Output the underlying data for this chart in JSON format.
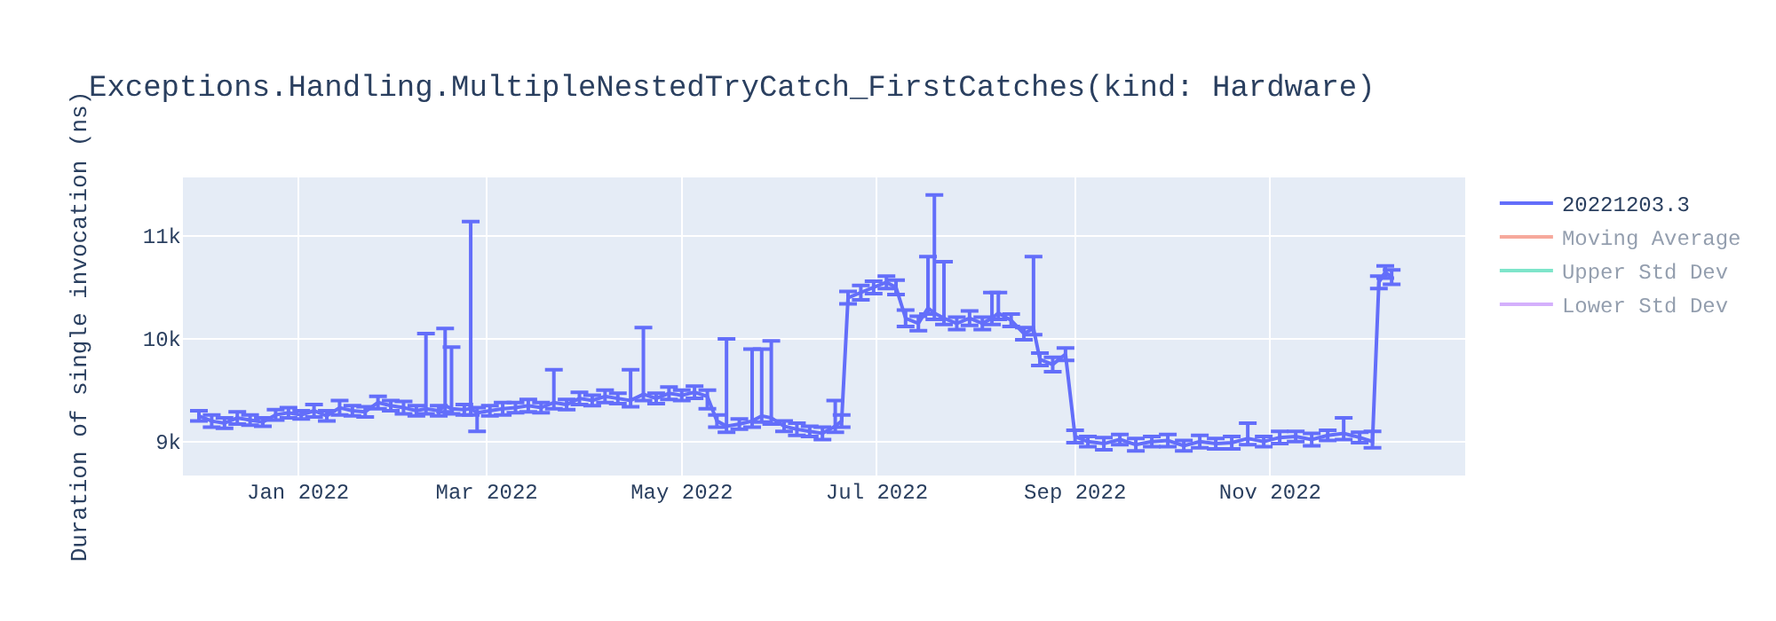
{
  "chart_data": {
    "type": "line",
    "title": "Exceptions.Handling.MultipleNestedTryCatch_FirstCatches(kind: Hardware)",
    "ylabel": "Duration of single invocation (ns)",
    "x": [
      "2021-12-01",
      "2021-12-05",
      "2021-12-09",
      "2021-12-13",
      "2021-12-17",
      "2021-12-21",
      "2021-12-25",
      "2021-12-29",
      "2022-01-02",
      "2022-01-06",
      "2022-01-10",
      "2022-01-14",
      "2022-01-18",
      "2022-01-22",
      "2022-01-26",
      "2022-01-30",
      "2022-02-03",
      "2022-02-07",
      "2022-02-10",
      "2022-02-14",
      "2022-02-16",
      "2022-02-18",
      "2022-02-22",
      "2022-02-24",
      "2022-02-26",
      "2022-03-02",
      "2022-03-06",
      "2022-03-10",
      "2022-03-14",
      "2022-03-18",
      "2022-03-22",
      "2022-03-26",
      "2022-03-30",
      "2022-04-03",
      "2022-04-07",
      "2022-04-11",
      "2022-04-15",
      "2022-04-19",
      "2022-04-23",
      "2022-04-27",
      "2022-05-01",
      "2022-05-05",
      "2022-05-09",
      "2022-05-12",
      "2022-05-15",
      "2022-05-19",
      "2022-05-23",
      "2022-05-26",
      "2022-05-29",
      "2022-06-02",
      "2022-06-06",
      "2022-06-10",
      "2022-06-14",
      "2022-06-18",
      "2022-06-20",
      "2022-06-22",
      "2022-06-26",
      "2022-06-30",
      "2022-07-04",
      "2022-07-07",
      "2022-07-10",
      "2022-07-14",
      "2022-07-17",
      "2022-07-19",
      "2022-07-22",
      "2022-07-26",
      "2022-07-30",
      "2022-08-03",
      "2022-08-06",
      "2022-08-08",
      "2022-08-12",
      "2022-08-16",
      "2022-08-19",
      "2022-08-21",
      "2022-08-25",
      "2022-08-29",
      "2022-09-01",
      "2022-09-05",
      "2022-09-10",
      "2022-09-15",
      "2022-09-20",
      "2022-09-25",
      "2022-09-30",
      "2022-10-05",
      "2022-10-10",
      "2022-10-15",
      "2022-10-20",
      "2022-10-25",
      "2022-10-30",
      "2022-11-04",
      "2022-11-09",
      "2022-11-14",
      "2022-11-19",
      "2022-11-24",
      "2022-11-29",
      "2022-12-03",
      "2022-12-05",
      "2022-12-07",
      "2022-12-09"
    ],
    "series": [
      {
        "name": "20221203.3",
        "color": "#636efa",
        "values": [
          9250,
          9200,
          9180,
          9230,
          9210,
          9190,
          9260,
          9280,
          9260,
          9300,
          9250,
          9330,
          9300,
          9290,
          9380,
          9350,
          9330,
          9300,
          9320,
          9300,
          9350,
          9320,
          9310,
          9320,
          9280,
          9300,
          9320,
          9330,
          9350,
          9330,
          9380,
          9360,
          9420,
          9400,
          9440,
          9420,
          9400,
          9460,
          9420,
          9470,
          9450,
          9480,
          9440,
          9200,
          9150,
          9170,
          9200,
          9250,
          9230,
          9150,
          9120,
          9100,
          9080,
          9150,
          9200,
          10400,
          10450,
          10500,
          10550,
          10500,
          10200,
          10150,
          10300,
          10250,
          10200,
          10150,
          10200,
          10150,
          10200,
          10250,
          10180,
          10050,
          10100,
          9800,
          9750,
          9850,
          9050,
          9000,
          8980,
          9020,
          8970,
          9000,
          9010,
          8960,
          9000,
          8980,
          8990,
          9030,
          9000,
          9040,
          9050,
          9020,
          9060,
          9080,
          9040,
          9000,
          10550,
          10650,
          10600
        ],
        "errors": [
          50,
          60,
          50,
          60,
          50,
          40,
          50,
          50,
          40,
          60,
          50,
          70,
          50,
          50,
          60,
          50,
          60,
          50,
          [
            9270,
            10050
          ],
          50,
          [
            9290,
            10100
          ],
          [
            9270,
            9920
          ],
          50,
          [
            9260,
            11140
          ],
          [
            9100,
            9330
          ],
          50,
          60,
          50,
          60,
          50,
          [
            9320,
            9700
          ],
          50,
          60,
          50,
          60,
          50,
          [
            9340,
            9700
          ],
          [
            9400,
            10110
          ],
          50,
          60,
          50,
          60,
          [
            9320,
            9500
          ],
          60,
          [
            9090,
            10000
          ],
          50,
          [
            9140,
            9900
          ],
          [
            9190,
            9900
          ],
          [
            9170,
            9980
          ],
          50,
          60,
          50,
          60,
          [
            9090,
            9400
          ],
          60,
          60,
          70,
          60,
          60,
          70,
          80,
          70,
          [
            10240,
            10800
          ],
          [
            10190,
            11400
          ],
          [
            10140,
            10750
          ],
          60,
          70,
          60,
          [
            10140,
            10450
          ],
          [
            10190,
            10450
          ],
          60,
          60,
          [
            10040,
            10800
          ],
          60,
          70,
          60,
          60,
          50,
          60,
          50,
          60,
          50,
          60,
          50,
          60,
          50,
          60,
          [
            8970,
            9180
          ],
          50,
          60,
          50,
          60,
          50,
          [
            9020,
            9230
          ],
          50,
          [
            8940,
            9100
          ],
          60,
          60,
          70
        ]
      },
      {
        "name": "Moving Average",
        "color": "#ef553b",
        "values": [
          null,
          null,
          null,
          null,
          null,
          null,
          null,
          null,
          null,
          null,
          null,
          null,
          null,
          null,
          null,
          null,
          null,
          null,
          null,
          null,
          null,
          null,
          null,
          null,
          null,
          null,
          null,
          null,
          null,
          null,
          null,
          null,
          null,
          null,
          null,
          null,
          null,
          null,
          null,
          null,
          null,
          null,
          null,
          null,
          null,
          null,
          null,
          null,
          null,
          null,
          null,
          null,
          null,
          null,
          null,
          null,
          null,
          null,
          null,
          null,
          null,
          null,
          null,
          null,
          null,
          null,
          null,
          null,
          null,
          null,
          null,
          null,
          null,
          null,
          null,
          null,
          null,
          null,
          null,
          null,
          null,
          null,
          null,
          null,
          null,
          null,
          null,
          null,
          null,
          null,
          null,
          null,
          null,
          null,
          null,
          null,
          null,
          null,
          null
        ]
      },
      {
        "name": "Upper Std Dev",
        "color": "#00cc96",
        "values": [
          null,
          null,
          null,
          null,
          null,
          null,
          null,
          null,
          null,
          null,
          null,
          null,
          null,
          null,
          null,
          null,
          null,
          null,
          null,
          null,
          null,
          null,
          null,
          null,
          null,
          null,
          null,
          null,
          null,
          null,
          null,
          null,
          null,
          null,
          null,
          null,
          null,
          null,
          null,
          null,
          null,
          null,
          null,
          null,
          null,
          null,
          null,
          null,
          null,
          null,
          null,
          null,
          null,
          null,
          null,
          null,
          null,
          null,
          null,
          null,
          null,
          null,
          null,
          null,
          null,
          null,
          null,
          null,
          null,
          null,
          null,
          null,
          null,
          null,
          null,
          null,
          null,
          null,
          null,
          null,
          null,
          null,
          null,
          null,
          null,
          null,
          null,
          null,
          null,
          null,
          null,
          null,
          null,
          null,
          null,
          null,
          null,
          null,
          null
        ]
      },
      {
        "name": "Lower Std Dev",
        "color": "#ab63fa",
        "values": [
          null,
          null,
          null,
          null,
          null,
          null,
          null,
          null,
          null,
          null,
          null,
          null,
          null,
          null,
          null,
          null,
          null,
          null,
          null,
          null,
          null,
          null,
          null,
          null,
          null,
          null,
          null,
          null,
          null,
          null,
          null,
          null,
          null,
          null,
          null,
          null,
          null,
          null,
          null,
          null,
          null,
          null,
          null,
          null,
          null,
          null,
          null,
          null,
          null,
          null,
          null,
          null,
          null,
          null,
          null,
          null,
          null,
          null,
          null,
          null,
          null,
          null,
          null,
          null,
          null,
          null,
          null,
          null,
          null,
          null,
          null,
          null,
          null,
          null,
          null,
          null,
          null,
          null,
          null,
          null,
          null,
          null,
          null,
          null,
          null,
          null,
          null,
          null,
          null,
          null,
          null,
          null,
          null,
          null,
          null,
          null,
          null,
          null,
          null
        ]
      }
    ],
    "xlim": [
      "2021-11-26",
      "2023-01-01"
    ],
    "xticks": [
      {
        "value": "2022-01-01",
        "label": "Jan 2022"
      },
      {
        "value": "2022-03-01",
        "label": "Mar 2022"
      },
      {
        "value": "2022-05-01",
        "label": "May 2022"
      },
      {
        "value": "2022-07-01",
        "label": "Jul 2022"
      },
      {
        "value": "2022-09-01",
        "label": "Sep 2022"
      },
      {
        "value": "2022-11-01",
        "label": "Nov 2022"
      }
    ],
    "ylim": [
      8670,
      11570
    ],
    "yticks": [
      {
        "value": 9000,
        "label": "9k"
      },
      {
        "value": 10000,
        "label": "10k"
      },
      {
        "value": 11000,
        "label": "11k"
      }
    ],
    "grid": true,
    "legend": "top right",
    "line_style": "solid"
  }
}
